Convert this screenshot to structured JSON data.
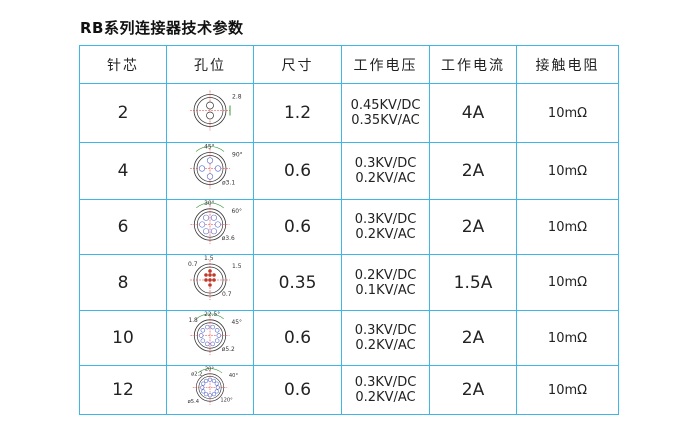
{
  "title": "RB系列连接器技术参数",
  "headers": [
    "针芯",
    "孔位",
    "尺寸",
    "工作电压",
    "工作电流",
    "接触电阻"
  ],
  "rows": [
    {
      "pins": "2",
      "hole": {
        "icon": "2-pin-layout-diagram",
        "labels": [
          "2.8"
        ]
      },
      "size": "1.2",
      "voltage": [
        "0.45KV/DC",
        "0.35KV/AC"
      ],
      "current": "4A",
      "resistance": "10mΩ"
    },
    {
      "pins": "4",
      "hole": {
        "icon": "4-pin-layout-diagram",
        "labels": [
          "90°",
          "45°",
          "ø3.1"
        ]
      },
      "size": "0.6",
      "voltage": [
        "0.3KV/DC",
        "0.2KV/AC"
      ],
      "current": "2A",
      "resistance": "10mΩ"
    },
    {
      "pins": "6",
      "hole": {
        "icon": "6-pin-layout-diagram",
        "labels": [
          "60°",
          "30°",
          "ø3.6"
        ]
      },
      "size": "0.6",
      "voltage": [
        "0.3KV/DC",
        "0.2KV/AC"
      ],
      "current": "2A",
      "resistance": "10mΩ"
    },
    {
      "pins": "8",
      "hole": {
        "icon": "8-pin-layout-diagram",
        "labels": [
          "1.5",
          "1.5",
          "0.7",
          "0.7"
        ]
      },
      "size": "0.35",
      "voltage": [
        "0.2KV/DC",
        "0.1KV/AC"
      ],
      "current": "1.5A",
      "resistance": "10mΩ"
    },
    {
      "pins": "10",
      "hole": {
        "icon": "10-pin-layout-diagram",
        "labels": [
          "45°",
          "22.5°",
          "ø5.2",
          "1.8"
        ]
      },
      "size": "0.6",
      "voltage": [
        "0.3KV/DC",
        "0.2KV/AC"
      ],
      "current": "2A",
      "resistance": "10mΩ"
    },
    {
      "pins": "12",
      "hole": {
        "icon": "12-pin-layout-diagram",
        "labels": [
          "40°",
          "20°",
          "120°",
          "ø2.2",
          "ø5.4"
        ]
      },
      "size": "0.6",
      "voltage": [
        "0.3KV/DC",
        "0.2KV/AC"
      ],
      "current": "2A",
      "resistance": "10mΩ"
    }
  ],
  "colors": {
    "border": "#3fb6e8",
    "pin_red": "#c0392b",
    "dimension_green": "#3a9a3a"
  }
}
